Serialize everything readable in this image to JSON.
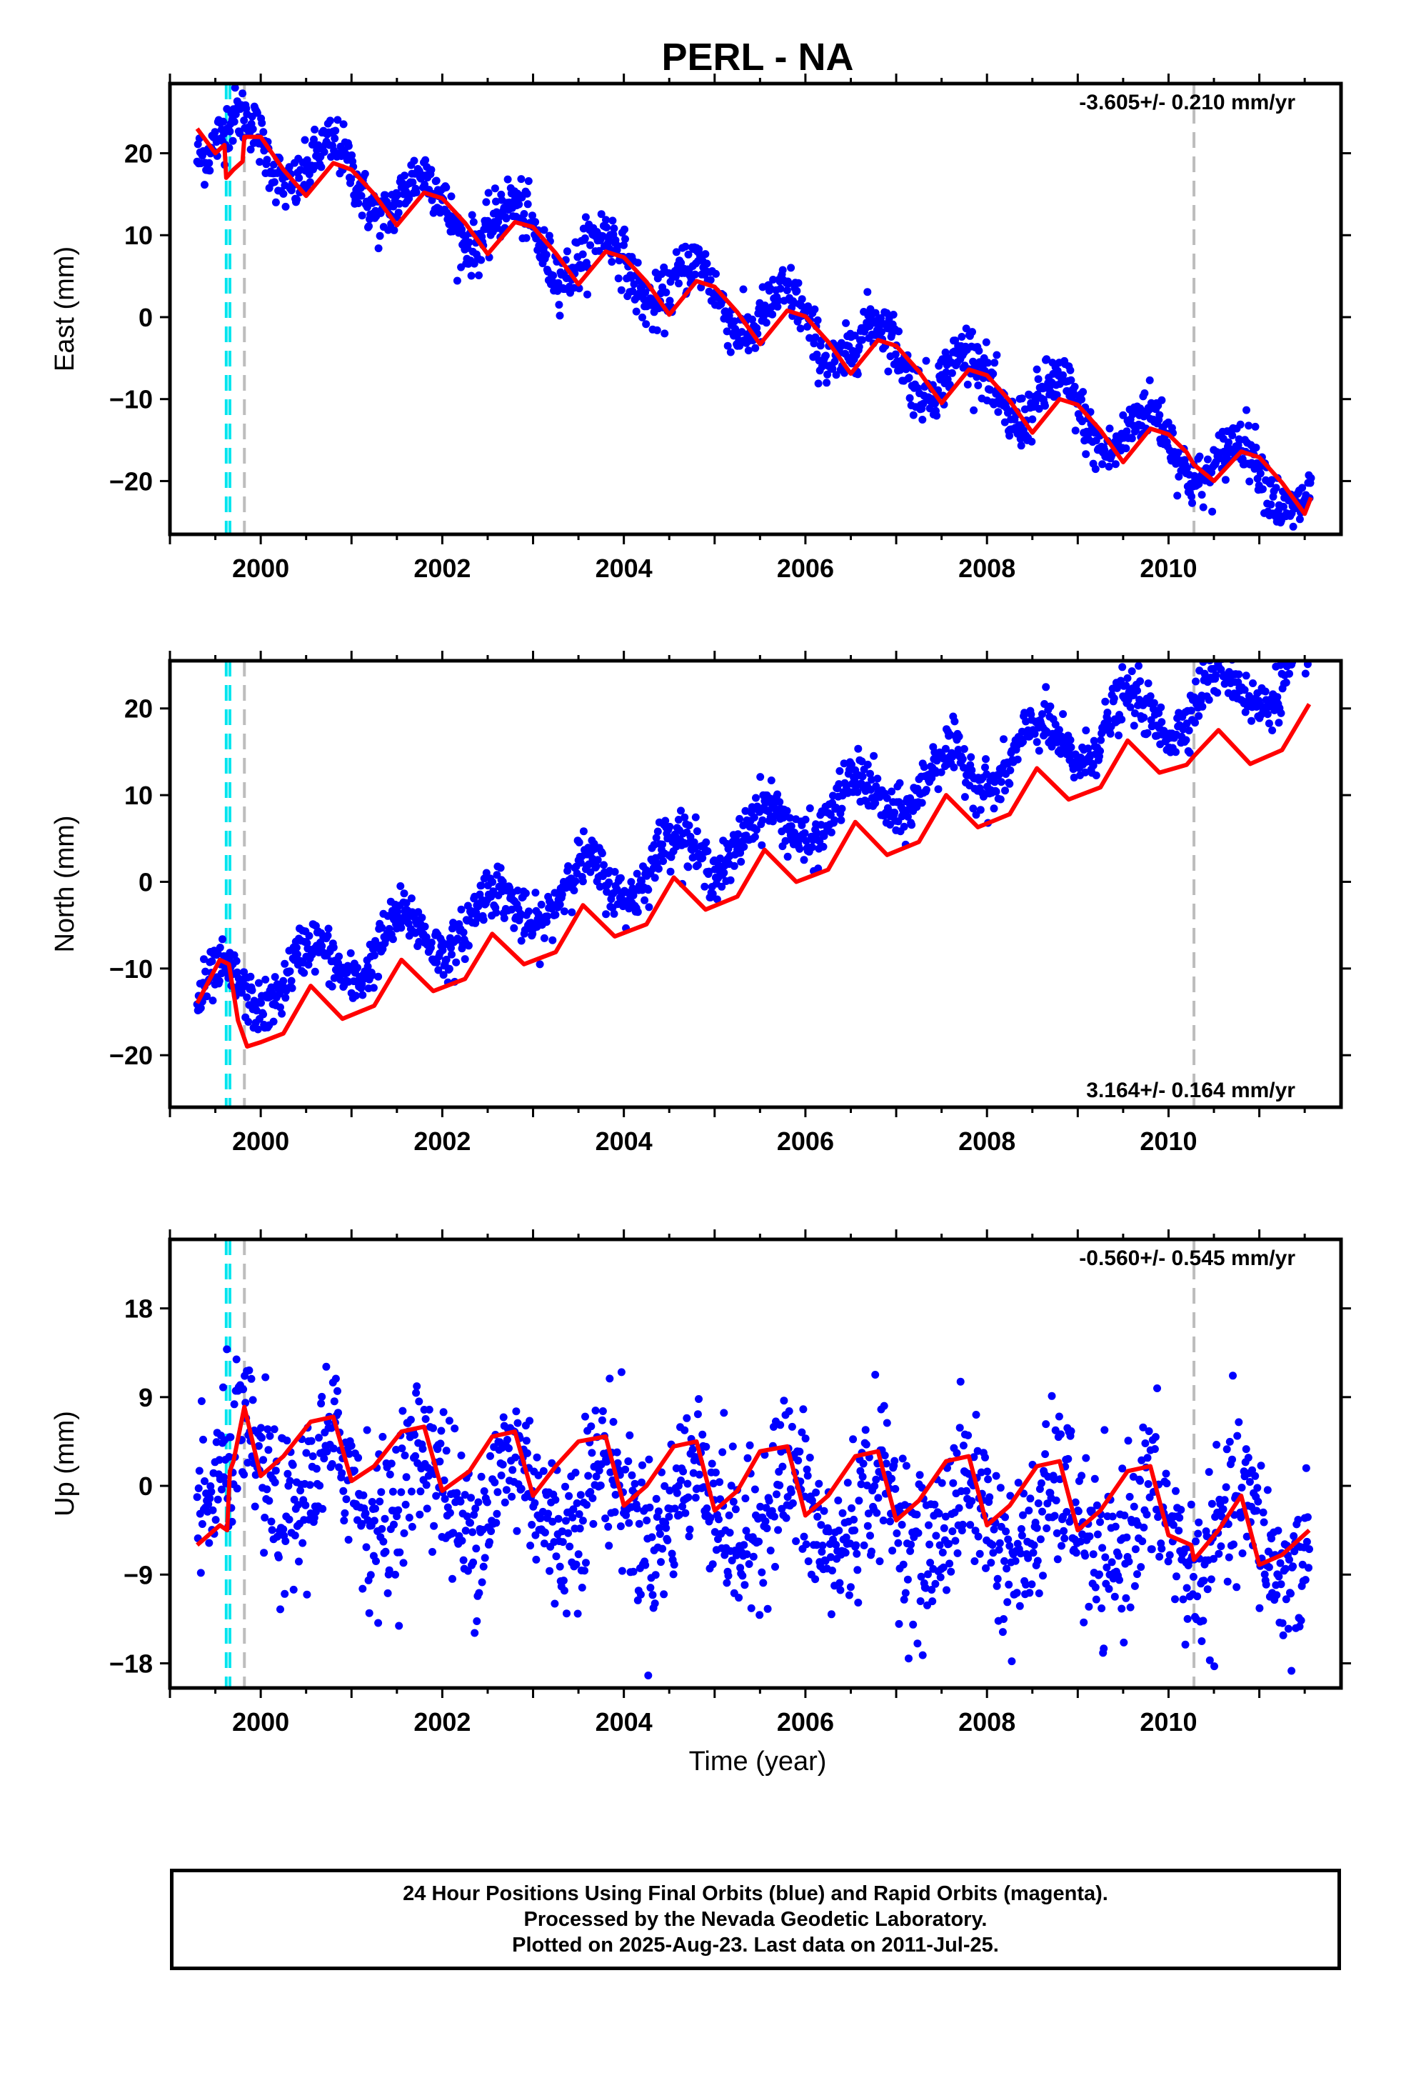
{
  "title": "PERL - NA",
  "colors": {
    "final_orbits": "#0000ff",
    "model_fit": "#ff0000",
    "cyan_marker": "#00e5ee",
    "gray_marker": "#bdbdbd",
    "frame": "#000000"
  },
  "chart_data": [
    {
      "type": "scatter",
      "component": "east",
      "ylabel": "East (mm)",
      "xlabel": "",
      "xlim": [
        1999.0,
        2011.9
      ],
      "ylim": [
        -26.5,
        28.5
      ],
      "yticks": [
        -20,
        -10,
        0,
        10,
        20
      ],
      "xticks": [
        2000,
        2002,
        2004,
        2006,
        2008,
        2010
      ],
      "xtick_labels": [
        "2000",
        "2002",
        "2004",
        "2006",
        "2008",
        "2010"
      ],
      "rate_label": "-3.605+/- 0.210 mm/yr",
      "rate_position": "top-right",
      "trend": {
        "slope": -3.605,
        "intercept": 23.0,
        "ref_year": 1999.3
      },
      "seasonal": {
        "amplitude": 3.5,
        "phase_year": 0.8
      },
      "scatter_sd": 1.7,
      "series": [
        {
          "name": "",
          "type": "line",
          "x": [
            1999.3,
            1999.5,
            1999.6,
            1999.62,
            1999.7,
            1999.8,
            1999.82,
            2000.0,
            2000.25,
            2000.5,
            2000.8,
            2001.0,
            2001.25,
            2001.5,
            2001.8,
            2002.0,
            2002.25,
            2002.5,
            2002.8,
            2003.0,
            2003.25,
            2003.5,
            2003.8,
            2004.0,
            2004.25,
            2004.5,
            2004.8,
            2005.0,
            2005.25,
            2005.5,
            2005.8,
            2006.0,
            2006.25,
            2006.5,
            2006.8,
            2007.0,
            2007.25,
            2007.5,
            2007.8,
            2008.0,
            2008.25,
            2008.5,
            2008.8,
            2009.0,
            2009.25,
            2009.5,
            2009.8,
            2010.0,
            2010.2,
            2010.28,
            2010.5,
            2010.8,
            2011.0,
            2011.25,
            2011.5,
            2011.57
          ],
          "y": [
            23.0,
            20.0,
            21.0,
            17.0,
            18.0,
            19.0,
            22.0,
            22.0,
            18.0,
            14.8,
            18.8,
            18.0,
            15.0,
            11.2,
            15.2,
            14.5,
            11.5,
            7.7,
            11.6,
            11.0,
            7.8,
            4.0,
            8.0,
            7.3,
            4.3,
            0.3,
            4.4,
            3.7,
            0.6,
            -3.3,
            0.8,
            0.1,
            -3.0,
            -6.9,
            -2.8,
            -3.5,
            -6.6,
            -10.5,
            -6.4,
            -7.1,
            -10.2,
            -14.1,
            -10.0,
            -10.7,
            -13.8,
            -17.7,
            -13.6,
            -14.3,
            -16.5,
            -18.0,
            -20.0,
            -16.4,
            -17.1,
            -20.2,
            -24.0,
            -22.0
          ]
        }
      ],
      "markers": [
        {
          "x": 1999.62,
          "color": "cyan"
        },
        {
          "x": 1999.66,
          "color": "cyan"
        },
        {
          "x": 1999.82,
          "color": "gray"
        },
        {
          "x": 2010.28,
          "color": "gray"
        }
      ]
    },
    {
      "type": "scatter",
      "component": "north",
      "ylabel": "North (mm)",
      "xlabel": "",
      "xlim": [
        1999.0,
        2011.9
      ],
      "ylim": [
        -26.0,
        25.5
      ],
      "yticks": [
        -20,
        -10,
        0,
        10,
        20
      ],
      "xticks": [
        2000,
        2002,
        2004,
        2006,
        2008,
        2010
      ],
      "xtick_labels": [
        "2000",
        "2002",
        "2004",
        "2006",
        "2008",
        "2010"
      ],
      "rate_label": "3.164+/- 0.164 mm/yr",
      "rate_position": "bottom-right",
      "trend": {
        "slope": 3.164,
        "intercept": -14.0,
        "ref_year": 1999.3
      },
      "seasonal": {
        "amplitude": 3.0,
        "phase_year": 0.55
      },
      "scatter_sd": 1.5,
      "series": [
        {
          "name": "",
          "type": "line",
          "x": [
            1999.3,
            1999.55,
            1999.65,
            1999.75,
            1999.85,
            2000.0,
            2000.25,
            2000.55,
            2000.9,
            2001.25,
            2001.55,
            2001.9,
            2002.25,
            2002.55,
            2002.9,
            2003.25,
            2003.55,
            2003.9,
            2004.25,
            2004.55,
            2004.9,
            2005.25,
            2005.55,
            2005.9,
            2006.25,
            2006.55,
            2006.9,
            2007.25,
            2007.55,
            2007.9,
            2008.25,
            2008.55,
            2008.9,
            2009.25,
            2009.55,
            2009.9,
            2010.2,
            2010.28,
            2010.55,
            2010.9,
            2011.25,
            2011.55
          ],
          "y": [
            -14.0,
            -9.0,
            -9.5,
            -16.0,
            -19.0,
            -18.5,
            -17.5,
            -12.0,
            -15.8,
            -14.3,
            -9.0,
            -12.6,
            -11.2,
            -6.0,
            -9.5,
            -8.1,
            -2.7,
            -6.3,
            -4.9,
            0.5,
            -3.2,
            -1.7,
            3.7,
            0.0,
            1.4,
            6.9,
            3.1,
            4.6,
            10.0,
            6.3,
            7.8,
            13.1,
            9.5,
            10.9,
            16.3,
            12.6,
            13.5,
            14.5,
            17.5,
            13.6,
            15.2,
            20.5
          ]
        }
      ],
      "markers": [
        {
          "x": 1999.62,
          "color": "cyan"
        },
        {
          "x": 1999.66,
          "color": "cyan"
        },
        {
          "x": 1999.82,
          "color": "gray"
        },
        {
          "x": 2010.28,
          "color": "gray"
        }
      ]
    },
    {
      "type": "scatter",
      "component": "up",
      "ylabel": "Up (mm)",
      "xlabel": "Time (year)",
      "xlim": [
        1999.0,
        2011.9
      ],
      "ylim": [
        -20.5,
        25.0
      ],
      "yticks": [
        -18,
        -9,
        0,
        9,
        18
      ],
      "xticks": [
        2000,
        2002,
        2004,
        2006,
        2008,
        2010
      ],
      "xtick_labels": [
        "2000",
        "2002",
        "2004",
        "2006",
        "2008",
        "2010"
      ],
      "rate_label": "-0.560+/- 0.545 mm/yr",
      "rate_position": "top-right",
      "trend": {
        "slope": -0.56,
        "intercept": 1.0,
        "ref_year": 1999.3
      },
      "seasonal": {
        "amplitude": 4.0,
        "phase_year": 0.8
      },
      "scatter_sd": 4.0,
      "series": [
        {
          "name": "",
          "type": "line",
          "x": [
            1999.3,
            1999.55,
            1999.63,
            1999.66,
            1999.7,
            1999.82,
            2000.0,
            2000.25,
            2000.55,
            2000.8,
            2001.0,
            2001.25,
            2001.55,
            2001.8,
            2002.0,
            2002.3,
            2002.55,
            2002.8,
            2003.0,
            2003.25,
            2003.5,
            2003.8,
            2004.0,
            2004.25,
            2004.55,
            2004.8,
            2005.0,
            2005.25,
            2005.5,
            2005.8,
            2006.0,
            2006.25,
            2006.55,
            2006.8,
            2007.0,
            2007.25,
            2007.55,
            2007.8,
            2008.0,
            2008.25,
            2008.55,
            2008.8,
            2009.0,
            2009.25,
            2009.55,
            2009.8,
            2010.0,
            2010.25,
            2010.28,
            2010.55,
            2010.8,
            2011.0,
            2011.25,
            2011.55
          ],
          "y": [
            -6.0,
            -4.0,
            -4.5,
            1.5,
            2.5,
            8.0,
            1.0,
            3.0,
            6.5,
            7.0,
            0.5,
            2.0,
            5.5,
            6.0,
            -0.5,
            1.5,
            5.0,
            5.5,
            -1.0,
            2.0,
            4.5,
            5.0,
            -2.0,
            0.0,
            4.0,
            4.5,
            -2.5,
            -0.5,
            3.5,
            4.0,
            -3.0,
            -1.0,
            3.0,
            3.5,
            -3.5,
            -1.5,
            2.5,
            3.0,
            -4.0,
            -2.0,
            2.0,
            2.5,
            -4.5,
            -2.5,
            1.5,
            2.0,
            -5.0,
            -6.0,
            -7.5,
            -4.5,
            -1.0,
            -8.0,
            -7.0,
            -4.5
          ]
        }
      ],
      "markers": [
        {
          "x": 1999.62,
          "color": "cyan"
        },
        {
          "x": 1999.66,
          "color": "cyan"
        },
        {
          "x": 1999.82,
          "color": "gray"
        },
        {
          "x": 2010.28,
          "color": "gray"
        }
      ]
    }
  ],
  "footer": {
    "line1": "24 Hour Positions Using Final Orbits (blue) and Rapid Orbits (magenta).",
    "line2": "Processed by the Nevada Geodetic Laboratory.",
    "line3": "Plotted on 2025-Aug-23. Last data on 2011-Jul-25."
  }
}
